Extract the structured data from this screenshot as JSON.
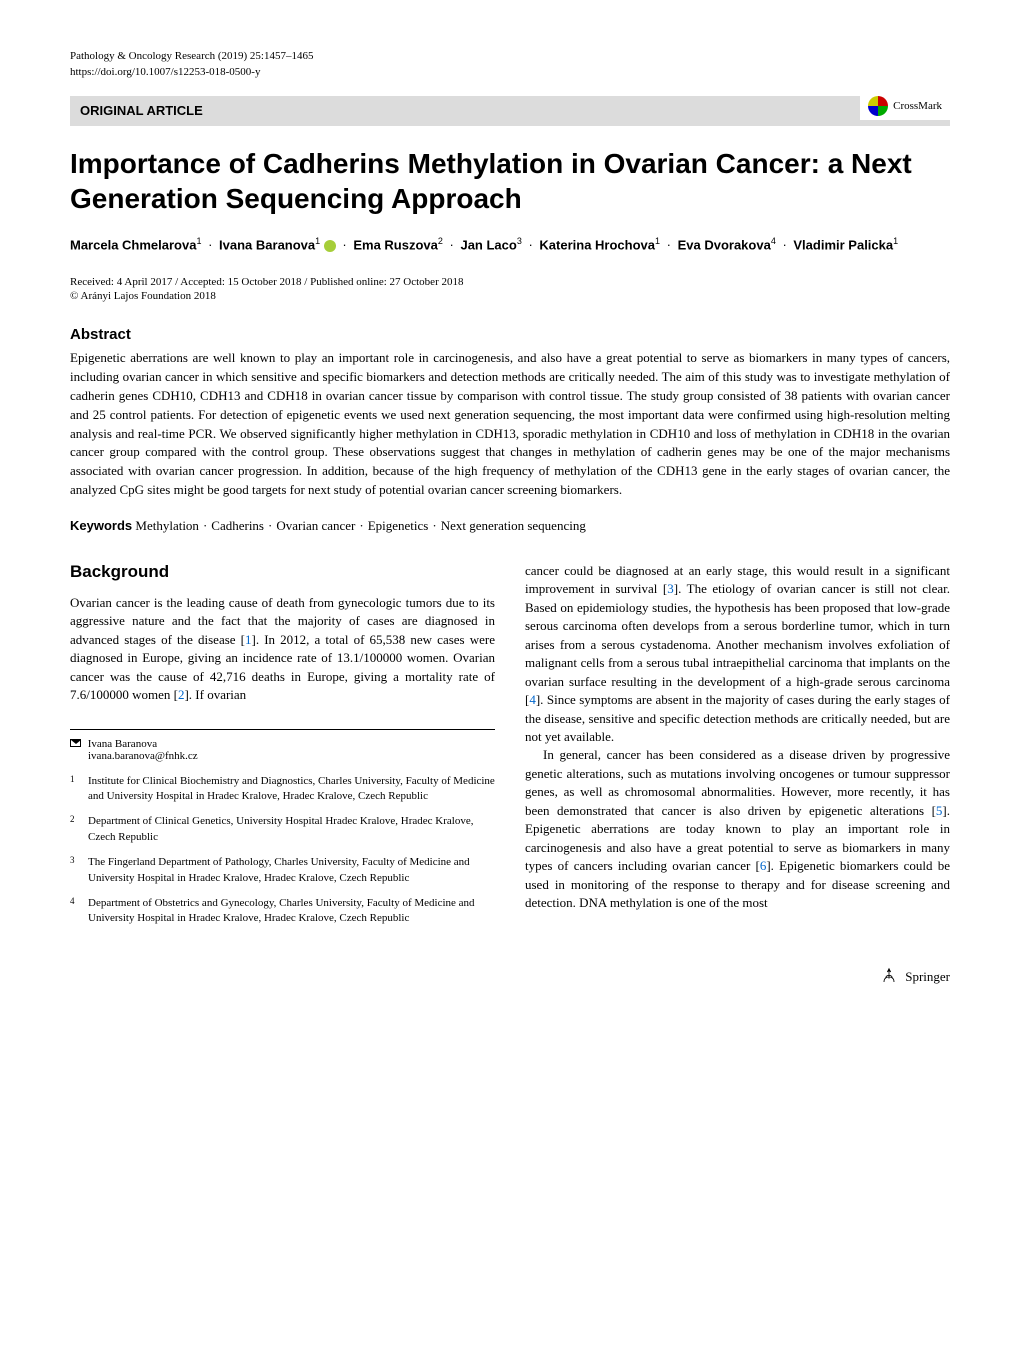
{
  "header": {
    "journal_info": "Pathology & Oncology Research (2019) 25:1457–1465",
    "doi": "https://doi.org/10.1007/s12253-018-0500-y"
  },
  "article_type": "ORIGINAL ARTICLE",
  "crossmark_label": "CrossMark",
  "title": "Importance of Cadherins Methylation in Ovarian Cancer: a Next Generation Sequencing Approach",
  "authors": [
    {
      "name": "Marcela Chmelarova",
      "affil": "1",
      "orcid": false
    },
    {
      "name": "Ivana Baranova",
      "affil": "1",
      "orcid": true
    },
    {
      "name": "Ema Ruszova",
      "affil": "2",
      "orcid": false
    },
    {
      "name": "Jan Laco",
      "affil": "3",
      "orcid": false
    },
    {
      "name": "Katerina Hrochova",
      "affil": "1",
      "orcid": false
    },
    {
      "name": "Eva Dvorakova",
      "affil": "4",
      "orcid": false
    },
    {
      "name": "Vladimir Palicka",
      "affil": "1",
      "orcid": false
    }
  ],
  "dates": "Received: 4 April 2017 / Accepted: 15 October 2018 / Published online: 27 October 2018",
  "copyright": "© Arányi Lajos Foundation 2018",
  "abstract": {
    "heading": "Abstract",
    "text": "Epigenetic aberrations are well known to play an important role in carcinogenesis, and also have a great potential to serve as biomarkers in many types of cancers, including ovarian cancer in which sensitive and specific biomarkers and detection methods are critically needed. The aim of this study was to investigate methylation of cadherin genes CDH10, CDH13 and CDH18 in ovarian cancer tissue by comparison with control tissue. The study group consisted of 38 patients with ovarian cancer and 25 control patients. For detection of epigenetic events we used next generation sequencing, the most important data were confirmed using high-resolution melting analysis and real-time PCR. We observed significantly higher methylation in CDH13, sporadic methylation in CDH10 and loss of methylation in CDH18 in the ovarian cancer group compared with the control group. These observations suggest that changes in methylation of cadherin genes may be one of the major mechanisms associated with ovarian cancer progression. In addition, because of the high frequency of methylation of the CDH13 gene in the early stages of ovarian cancer, the analyzed CpG sites might be good targets for next study of potential ovarian cancer screening biomarkers."
  },
  "keywords": {
    "label": "Keywords",
    "items": [
      "Methylation",
      "Cadherins",
      "Ovarian cancer",
      "Epigenetics",
      "Next generation sequencing"
    ]
  },
  "background": {
    "heading": "Background",
    "col1_p1": "Ovarian cancer is the leading cause of death from gynecologic tumors due to its aggressive nature and the fact that the majority of cases are diagnosed in advanced stages of the disease [",
    "col1_ref1": "1",
    "col1_p1b": "]. In 2012, a total of 65,538 new cases were diagnosed in Europe, giving an incidence rate of 13.1/100000 women. Ovarian cancer was the cause of 42,716 deaths in Europe, giving a mortality rate of 7.6/100000 women [",
    "col1_ref2": "2",
    "col1_p1c": "]. If ovarian",
    "col2_p1": "cancer could be diagnosed at an early stage, this would result in a significant improvement in survival [",
    "col2_ref3": "3",
    "col2_p1b": "]. The etiology of ovarian cancer is still not clear. Based on epidemiology studies, the hypothesis has been proposed that low-grade serous carcinoma often develops from a serous borderline tumor, which in turn arises from a serous cystadenoma. Another mechanism involves exfoliation of malignant cells from a serous tubal intraepithelial carcinoma that implants on the ovarian surface resulting in the development of a high-grade serous carcinoma [",
    "col2_ref4": "4",
    "col2_p1c": "]. Since symptoms are absent in the majority of cases during the early stages of the disease, sensitive and specific detection methods are critically needed, but are not yet available.",
    "col2_p2a": "In general, cancer has been considered as a disease driven by progressive genetic alterations, such as mutations involving oncogenes or tumour suppressor genes, as well as chromosomal abnormalities. However, more recently, it has been demonstrated that cancer is also driven by epigenetic alterations [",
    "col2_ref5": "5",
    "col2_p2b": "]. Epigenetic aberrations are today known to play an important role in carcinogenesis and also have a great potential to serve as biomarkers in many types of cancers including ovarian cancer [",
    "col2_ref6": "6",
    "col2_p2c": "]. Epigenetic biomarkers could be used in monitoring of the response to therapy and for disease screening and detection. DNA methylation is one of the most"
  },
  "correspondence": {
    "name": "Ivana Baranova",
    "email": "ivana.baranova@fnhk.cz"
  },
  "affiliations": [
    {
      "num": "1",
      "text": "Institute for Clinical Biochemistry and Diagnostics, Charles University, Faculty of Medicine and University Hospital in Hradec Kralove, Hradec Kralove, Czech Republic"
    },
    {
      "num": "2",
      "text": "Department of Clinical Genetics, University Hospital Hradec Kralove, Hradec Kralove, Czech Republic"
    },
    {
      "num": "3",
      "text": "The Fingerland Department of Pathology, Charles University, Faculty of Medicine and University Hospital in Hradec Kralove, Hradec Kralove, Czech Republic"
    },
    {
      "num": "4",
      "text": "Department of Obstetrics and Gynecology, Charles University, Faculty of Medicine and University Hospital in Hradec Kralove, Hradec Kralove, Czech Republic"
    }
  ],
  "footer": {
    "publisher": "Springer"
  }
}
